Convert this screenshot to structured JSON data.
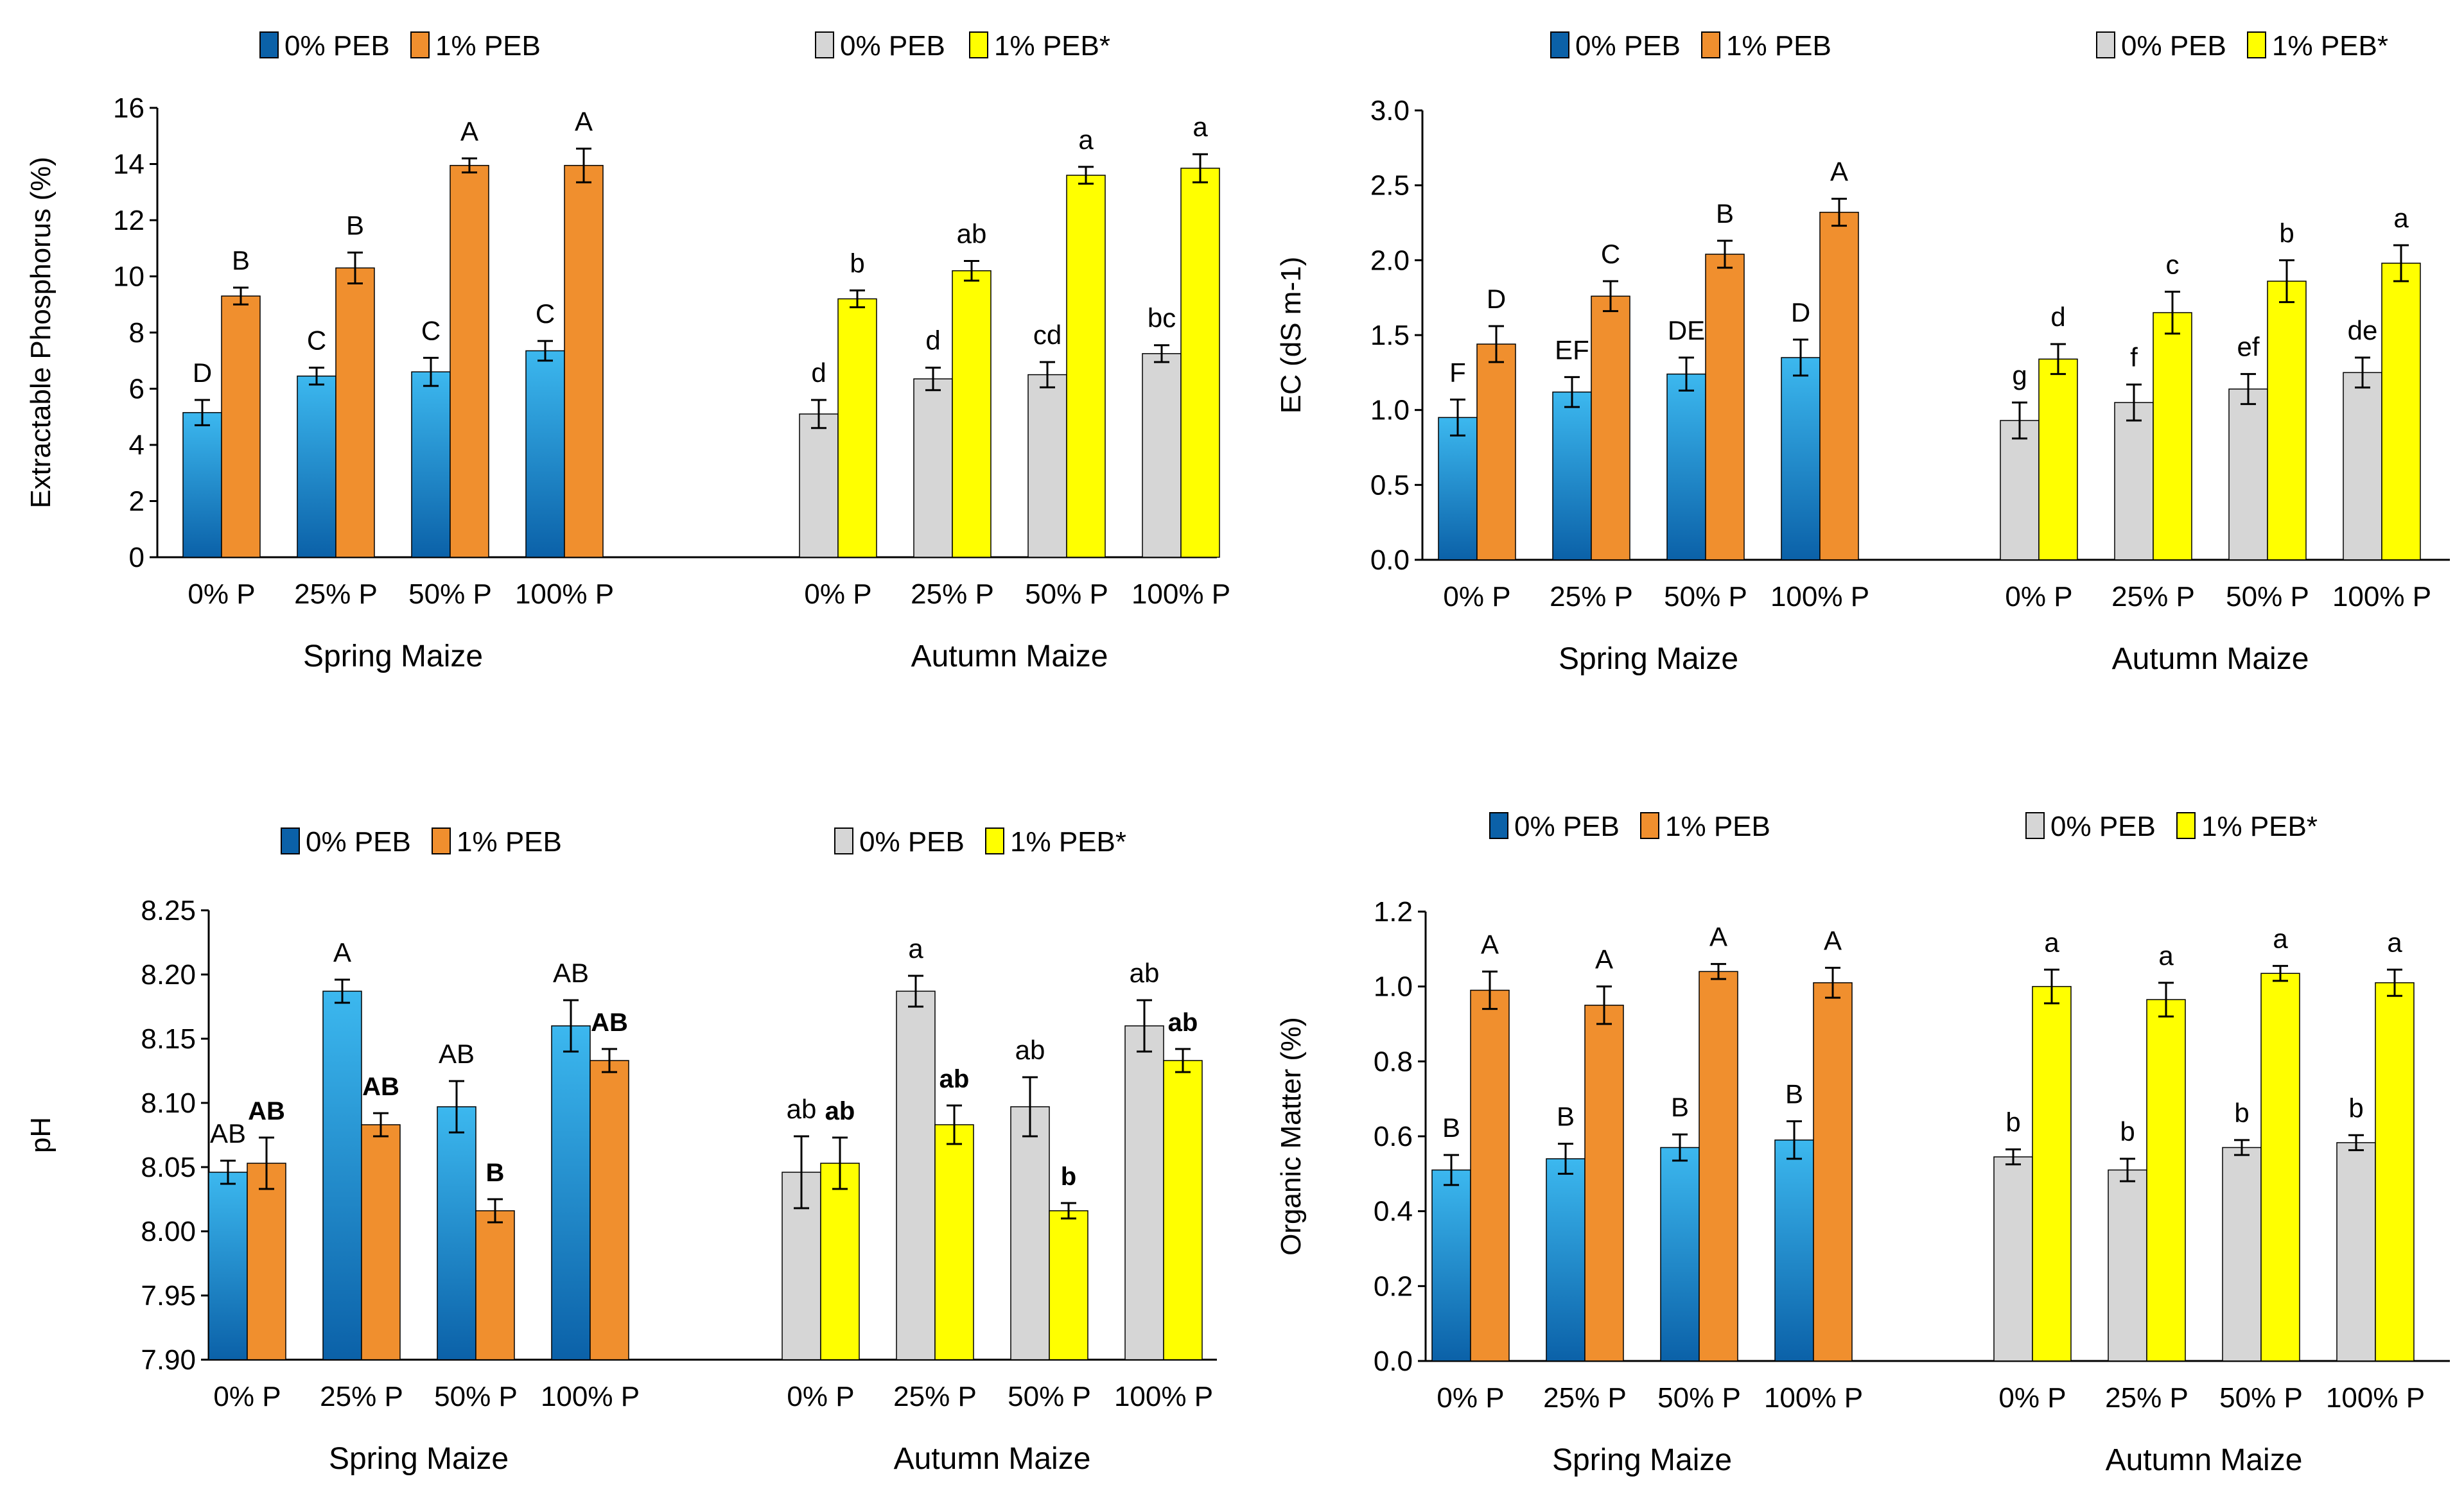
{
  "colors": {
    "blue_top": "#3cb8ef",
    "blue_bottom": "#0b61a8",
    "orange": "#f08f2e",
    "gray": "#d6d6d6",
    "yellow": "#ffff00",
    "axis": "#000000"
  },
  "chart_data": [
    {
      "type": "bar",
      "ylabel": "Extractable Phosphorus (%)",
      "ylim": [
        0,
        16
      ],
      "yticks": [
        0,
        2,
        4,
        6,
        8,
        10,
        12,
        14,
        16
      ],
      "tick_decimals": 0,
      "categories": [
        "0% P",
        "25% P",
        "50% P",
        "100% P"
      ],
      "legend": [
        {
          "label": "0% PEB",
          "color": "blue"
        },
        {
          "label": "1% PEB",
          "color": "orange"
        },
        {
          "label": "0% PEB",
          "color": "gray"
        },
        {
          "label": "1% PEB*",
          "color": "yellow"
        }
      ],
      "groups": [
        {
          "name": "Spring Maize",
          "series": [
            {
              "name": "0% PEB",
              "color": "blue",
              "values": [
                5.15,
                6.45,
                6.6,
                7.35
              ],
              "errors": [
                0.45,
                0.3,
                0.5,
                0.35
              ],
              "letters": [
                "D",
                "C",
                "C",
                "C"
              ]
            },
            {
              "name": "1% PEB",
              "color": "orange",
              "values": [
                9.3,
                10.3,
                13.95,
                13.95
              ],
              "errors": [
                0.3,
                0.55,
                0.25,
                0.6
              ],
              "letters": [
                "B",
                "B",
                "A",
                "A"
              ]
            }
          ]
        },
        {
          "name": "Autumn Maize",
          "series": [
            {
              "name": "0% PEB",
              "color": "gray",
              "values": [
                5.1,
                6.35,
                6.5,
                7.25
              ],
              "errors": [
                0.5,
                0.4,
                0.45,
                0.3
              ],
              "letters": [
                "d",
                "d",
                "cd",
                "bc"
              ]
            },
            {
              "name": "1% PEB*",
              "color": "yellow",
              "values": [
                9.2,
                10.2,
                13.6,
                13.85
              ],
              "errors": [
                0.3,
                0.35,
                0.3,
                0.5
              ],
              "letters": [
                "b",
                "ab",
                "a",
                "a"
              ]
            }
          ]
        }
      ]
    },
    {
      "type": "bar",
      "ylabel": "EC (dS m-1)",
      "ylim": [
        0,
        3.0
      ],
      "yticks": [
        0,
        0.5,
        1.0,
        1.5,
        2.0,
        2.5,
        3.0
      ],
      "tick_decimals": 1,
      "categories": [
        "0% P",
        "25% P",
        "50% P",
        "100% P"
      ],
      "legend": [
        {
          "label": "0% PEB",
          "color": "blue"
        },
        {
          "label": "1% PEB",
          "color": "orange"
        },
        {
          "label": "0% PEB",
          "color": "gray"
        },
        {
          "label": "1% PEB*",
          "color": "yellow"
        }
      ],
      "groups": [
        {
          "name": "Spring Maize",
          "series": [
            {
              "name": "0% PEB",
              "color": "blue",
              "values": [
                0.95,
                1.12,
                1.24,
                1.35
              ],
              "errors": [
                0.12,
                0.1,
                0.11,
                0.12
              ],
              "letters": [
                "F",
                "EF",
                "DE",
                "D"
              ]
            },
            {
              "name": "1% PEB",
              "color": "orange",
              "values": [
                1.44,
                1.76,
                2.04,
                2.32
              ],
              "errors": [
                0.12,
                0.1,
                0.09,
                0.09
              ],
              "letters": [
                "D",
                "C",
                "B",
                "A"
              ]
            }
          ]
        },
        {
          "name": "Autumn Maize",
          "series": [
            {
              "name": "0% PEB",
              "color": "gray",
              "values": [
                0.93,
                1.05,
                1.14,
                1.25
              ],
              "errors": [
                0.12,
                0.12,
                0.1,
                0.1
              ],
              "letters": [
                "g",
                "f",
                "ef",
                "de"
              ]
            },
            {
              "name": "1% PEB*",
              "color": "yellow",
              "values": [
                1.34,
                1.65,
                1.86,
                1.98
              ],
              "errors": [
                0.1,
                0.14,
                0.14,
                0.12
              ],
              "letters": [
                "d",
                "c",
                "b",
                "a"
              ]
            }
          ]
        }
      ]
    },
    {
      "type": "bar",
      "ylabel": "pH",
      "ylim": [
        7.9,
        8.25
      ],
      "yticks": [
        7.9,
        7.95,
        8.0,
        8.05,
        8.1,
        8.15,
        8.2,
        8.25
      ],
      "tick_decimals": 2,
      "categories": [
        "0% P",
        "25% P",
        "50% P",
        "100% P"
      ],
      "legend": [
        {
          "label": "0% PEB",
          "color": "blue"
        },
        {
          "label": "1% PEB",
          "color": "orange"
        },
        {
          "label": "0% PEB",
          "color": "gray"
        },
        {
          "label": "1% PEB*",
          "color": "yellow"
        }
      ],
      "groups": [
        {
          "name": "Spring Maize",
          "series": [
            {
              "name": "0% PEB",
              "color": "blue",
              "values": [
                8.046,
                8.187,
                8.097,
                8.16
              ],
              "errors": [
                0.009,
                0.009,
                0.02,
                0.02
              ],
              "letters": [
                "AB",
                "A",
                "AB",
                "AB"
              ],
              "bold": false
            },
            {
              "name": "1% PEB",
              "color": "orange",
              "values": [
                8.053,
                8.083,
                8.016,
                8.133
              ],
              "errors": [
                0.02,
                0.009,
                0.009,
                0.009
              ],
              "letters": [
                "AB",
                "AB",
                "B",
                "AB"
              ],
              "bold": true
            }
          ]
        },
        {
          "name": "Autumn Maize",
          "series": [
            {
              "name": "0% PEB",
              "color": "gray",
              "values": [
                8.046,
                8.187,
                8.097,
                8.16
              ],
              "errors": [
                0.028,
                0.012,
                0.023,
                0.02
              ],
              "letters": [
                "ab",
                "a",
                "ab",
                "ab"
              ],
              "bold": false
            },
            {
              "name": "1% PEB*",
              "color": "yellow",
              "values": [
                8.053,
                8.083,
                8.016,
                8.133
              ],
              "errors": [
                0.02,
                0.015,
                0.006,
                0.009
              ],
              "letters": [
                "ab",
                "ab",
                "b",
                "ab"
              ],
              "bold": true
            }
          ]
        }
      ]
    },
    {
      "type": "bar",
      "ylabel": "Organic Matter (%)",
      "ylim": [
        0,
        1.2
      ],
      "yticks": [
        0,
        0.2,
        0.4,
        0.6,
        0.8,
        1.0,
        1.2
      ],
      "tick_decimals": 1,
      "categories": [
        "0% P",
        "25% P",
        "50% P",
        "100% P"
      ],
      "legend": [
        {
          "label": "0% PEB",
          "color": "blue"
        },
        {
          "label": "1% PEB",
          "color": "orange"
        },
        {
          "label": "0% PEB",
          "color": "gray"
        },
        {
          "label": "1% PEB*",
          "color": "yellow"
        }
      ],
      "groups": [
        {
          "name": "Spring Maize",
          "series": [
            {
              "name": "0% PEB",
              "color": "blue",
              "values": [
                0.51,
                0.54,
                0.57,
                0.59
              ],
              "errors": [
                0.04,
                0.04,
                0.035,
                0.05
              ],
              "letters": [
                "B",
                "B",
                "B",
                "B"
              ]
            },
            {
              "name": "1% PEB",
              "color": "orange",
              "values": [
                0.99,
                0.95,
                1.04,
                1.01
              ],
              "errors": [
                0.05,
                0.05,
                0.02,
                0.04
              ],
              "letters": [
                "A",
                "A",
                "A",
                "A"
              ]
            }
          ]
        },
        {
          "name": "Autumn Maize",
          "series": [
            {
              "name": "0% PEB",
              "color": "gray",
              "values": [
                0.545,
                0.51,
                0.57,
                0.583
              ],
              "errors": [
                0.02,
                0.03,
                0.02,
                0.02
              ],
              "letters": [
                "b",
                "b",
                "b",
                "b"
              ]
            },
            {
              "name": "1% PEB*",
              "color": "yellow",
              "values": [
                1.0,
                0.965,
                1.035,
                1.01
              ],
              "errors": [
                0.045,
                0.045,
                0.02,
                0.035
              ],
              "letters": [
                "a",
                "a",
                "a",
                "a"
              ]
            }
          ]
        }
      ]
    }
  ]
}
